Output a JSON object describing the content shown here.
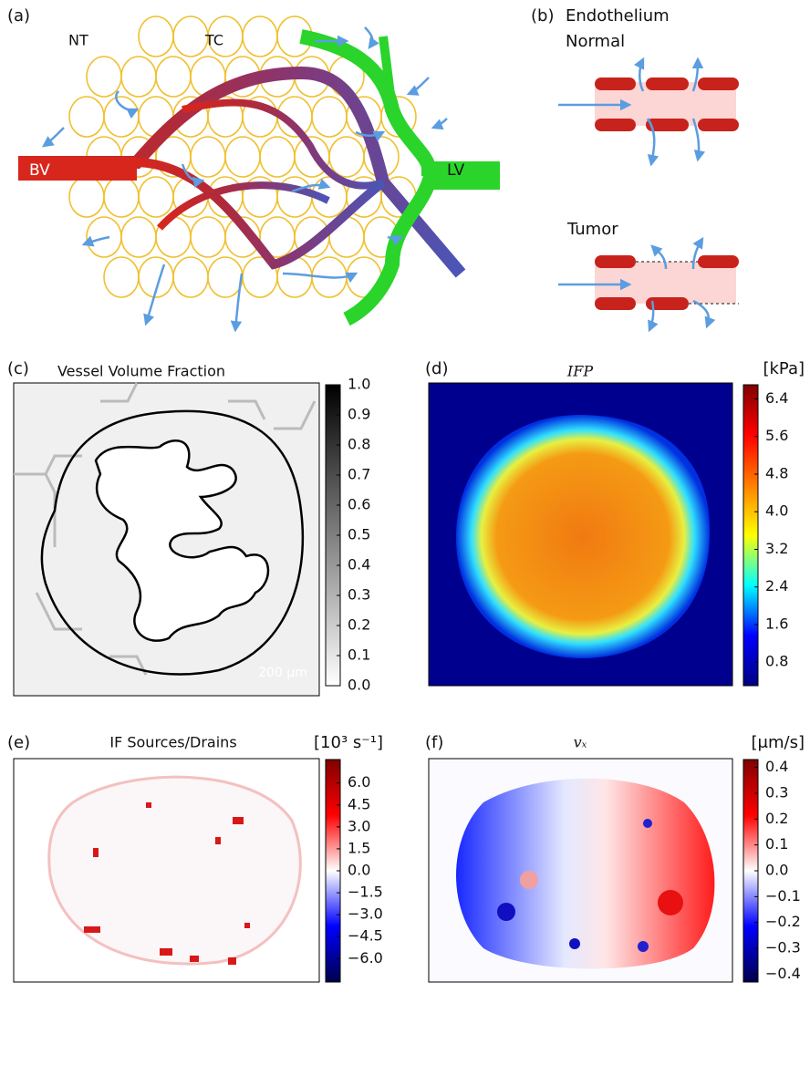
{
  "diagram": {
    "label": "(a)",
    "texts": {
      "nt": "NT",
      "tc": "TC",
      "bv": "BV",
      "lv": "LV"
    }
  },
  "endothelium": {
    "label": "(b)",
    "title": "Endothelium",
    "normal": "Normal",
    "tumor": "Tumor"
  },
  "panels": [
    {
      "label": "(c)",
      "title": "Vessel Volume Fraction",
      "scalebar": "200 μm",
      "colorbar": {
        "lim": [
          0,
          1
        ],
        "colors": [
          "#ffffff",
          "#000000"
        ],
        "ticks": [
          {
            "value": 0,
            "label": "0.0"
          },
          0.1,
          0.2,
          0.3,
          0.4,
          0.5,
          0.6,
          0.7,
          0.8,
          0.9,
          {
            "value": 1,
            "label": "1.0"
          }
        ]
      }
    },
    {
      "label": "(d)",
      "title": "IFP",
      "unit": "[kPa]",
      "colorbar": {
        "lim": [
          0.3,
          6.7
        ],
        "colors": [
          "#00007f",
          "#0000ff",
          "#00ffff",
          "#ffff00",
          "#ff7f00",
          "#ff0000",
          "#7f0000"
        ],
        "ticks": [
          0.8,
          1.6,
          2.4,
          3.2,
          {
            "value": 4,
            "label": "4.0"
          },
          4.8,
          5.6,
          6.4
        ]
      }
    },
    {
      "label": "(e)",
      "title": "IF Sources/Drains",
      "unit": "[10³ s⁻¹]",
      "colorbar": {
        "lim": [
          -7.6,
          7.6
        ],
        "colors": [
          "#00004c",
          "#0000ff",
          "#ffffff",
          "#ff0000",
          "#800000"
        ],
        "ticks": [
          {
            "value": -6,
            "label": "−6.0"
          },
          {
            "value": -4.5,
            "label": "−4.5"
          },
          {
            "value": -3,
            "label": "−3.0"
          },
          {
            "value": -1.5,
            "label": "−1.5"
          },
          {
            "value": 0,
            "label": "0.0"
          },
          1.5,
          {
            "value": 3,
            "label": "3.0"
          },
          4.5,
          {
            "value": 6,
            "label": "6.0"
          }
        ]
      }
    },
    {
      "label": "(f)",
      "title": "vₓ",
      "unit": "[μm/s]",
      "colorbar": {
        "lim": [
          -0.43,
          0.43
        ],
        "colors": [
          "#00004c",
          "#0000ff",
          "#ffffff",
          "#ff0000",
          "#800000"
        ],
        "ticks": [
          {
            "value": -0.4,
            "label": "−0.4"
          },
          {
            "value": -0.3,
            "label": "−0.3"
          },
          {
            "value": -0.2,
            "label": "−0.2"
          },
          {
            "value": -0.1,
            "label": "−0.1"
          },
          {
            "value": 0,
            "label": "0.0"
          },
          0.1,
          0.2,
          0.3,
          0.4
        ]
      }
    }
  ]
}
